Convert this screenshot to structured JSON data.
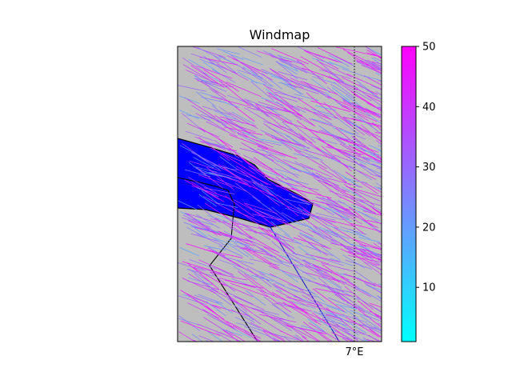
{
  "map": {
    "title": "Windmap",
    "lon_label": "7°E",
    "background_color": "#bebebe",
    "land_color": "#0000ff",
    "vector_colormap": "cool",
    "meridian_style": "dotted"
  },
  "colorbar": {
    "colormap": "cool",
    "vmin": 1,
    "vmax": 50,
    "ticks": [
      "10",
      "20",
      "30",
      "40",
      "50"
    ],
    "colors": [
      "#00ffff",
      "#ff00ff"
    ]
  }
}
